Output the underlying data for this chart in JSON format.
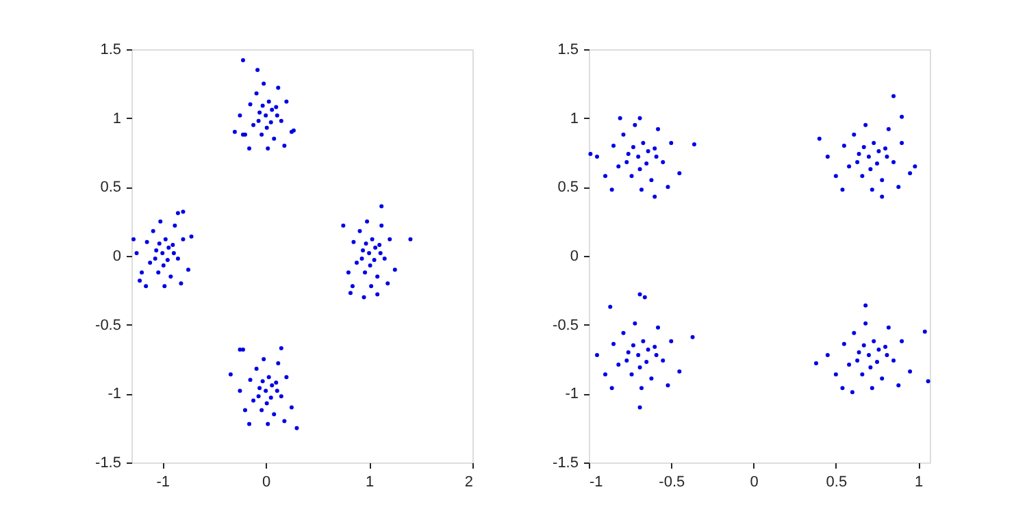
{
  "chart_data": [
    {
      "type": "scatter",
      "marker": "circle",
      "color": "#0000e6",
      "grid": false,
      "xlim": [
        -1.3,
        2
      ],
      "ylim": [
        -1.5,
        1.5
      ],
      "xticks": [
        -1,
        0,
        1,
        2
      ],
      "yticks": [
        -1.5,
        -1,
        -0.5,
        0,
        0.5,
        1,
        1.5
      ],
      "x": [
        0.0,
        0.05,
        -0.06,
        0.1,
        -0.12,
        0.03,
        -0.04,
        0.15,
        -0.15,
        0.08,
        -0.09,
        0.2,
        -0.2,
        0.02,
        0.12,
        -0.02,
        0.25,
        -0.25,
        0.18,
        -0.16,
        0.06,
        -0.07,
        0.01,
        0.11,
        -0.03,
        -0.22,
        -0.08,
        -0.22,
        0.27,
        -0.3,
        -1.0,
        -0.95,
        -1.06,
        -0.9,
        -1.12,
        -0.97,
        -1.04,
        -0.85,
        -1.15,
        -0.92,
        -1.09,
        -0.8,
        -1.2,
        -0.98,
        -0.88,
        -1.02,
        -0.75,
        -1.25,
        -0.82,
        -1.16,
        -0.94,
        -1.07,
        -0.99,
        -0.89,
        -1.03,
        -0.72,
        -1.28,
        -0.85,
        -0.8,
        -1.22,
        1.0,
        1.05,
        0.94,
        1.1,
        0.88,
        1.03,
        0.96,
        1.15,
        0.85,
        1.08,
        0.91,
        1.2,
        0.8,
        1.02,
        1.12,
        0.98,
        1.25,
        0.75,
        1.18,
        0.84,
        1.06,
        0.93,
        1.01,
        1.11,
        0.97,
        1.4,
        1.12,
        0.95,
        1.08,
        0.82,
        0.0,
        0.05,
        -0.06,
        0.1,
        -0.12,
        0.03,
        -0.04,
        0.15,
        -0.15,
        0.08,
        -0.09,
        0.2,
        -0.2,
        0.02,
        0.12,
        -0.02,
        0.25,
        -0.25,
        0.18,
        -0.16,
        0.06,
        -0.07,
        0.01,
        0.11,
        -0.03,
        -0.25,
        -0.22,
        0.15,
        0.3,
        -0.34
      ],
      "values": [
        1.02,
        0.97,
        1.04,
        1.08,
        0.95,
        1.12,
        0.88,
        0.98,
        1.1,
        0.85,
        1.18,
        1.12,
        0.88,
        0.78,
        1.22,
        1.25,
        0.9,
        1.02,
        0.8,
        0.78,
        1.06,
        0.98,
        0.93,
        1.02,
        1.09,
        1.42,
        1.35,
        0.88,
        0.91,
        0.9,
        0.02,
        -0.03,
        0.04,
        0.08,
        -0.05,
        0.12,
        -0.12,
        -0.02,
        0.1,
        -0.15,
        0.18,
        0.12,
        -0.12,
        -0.22,
        0.22,
        0.25,
        -0.1,
        0.02,
        -0.2,
        -0.22,
        0.06,
        -0.02,
        -0.07,
        0.02,
        0.09,
        0.14,
        0.12,
        0.31,
        0.32,
        -0.18,
        0.02,
        -0.03,
        0.04,
        0.08,
        -0.05,
        0.12,
        -0.12,
        -0.02,
        0.1,
        -0.15,
        0.18,
        0.12,
        -0.12,
        -0.22,
        0.22,
        0.25,
        -0.1,
        0.22,
        -0.2,
        -0.22,
        0.06,
        -0.02,
        -0.07,
        0.02,
        0.09,
        0.12,
        0.36,
        -0.3,
        -0.28,
        -0.27,
        -0.98,
        -1.03,
        -0.96,
        -0.92,
        -1.05,
        -0.88,
        -1.12,
        -1.02,
        -0.9,
        -1.15,
        -0.82,
        -0.88,
        -1.12,
        -1.22,
        -0.78,
        -0.75,
        -1.1,
        -0.98,
        -1.2,
        -1.22,
        -0.94,
        -1.02,
        -1.07,
        -0.98,
        -0.91,
        -0.68,
        -0.68,
        -0.67,
        -1.25,
        -0.86
      ]
    },
    {
      "type": "scatter",
      "marker": "circle",
      "color": "#0000e6",
      "grid": false,
      "xlim": [
        -1,
        1.07
      ],
      "ylim": [
        -1.5,
        1.5
      ],
      "xticks": [
        -1,
        -0.5,
        0,
        0.5,
        1
      ],
      "yticks": [
        -1.5,
        -1,
        -0.5,
        0,
        0.5,
        1,
        1.5
      ],
      "x": [
        -0.7,
        -0.65,
        -0.76,
        -0.6,
        -0.82,
        -0.67,
        -0.74,
        -0.55,
        -0.85,
        -0.62,
        -0.79,
        -0.5,
        -0.9,
        -0.68,
        -0.58,
        -0.72,
        -0.45,
        -0.95,
        -0.52,
        -0.86,
        -0.64,
        -0.77,
        -0.69,
        -0.59,
        -0.73,
        -0.36,
        -0.99,
        -0.81,
        -0.69,
        -0.6,
        0.7,
        0.75,
        0.64,
        0.8,
        0.58,
        0.73,
        0.66,
        0.85,
        0.55,
        0.78,
        0.61,
        0.9,
        0.5,
        0.72,
        0.82,
        0.68,
        0.95,
        0.45,
        0.88,
        0.54,
        0.76,
        0.63,
        0.71,
        0.81,
        0.67,
        0.4,
        0.85,
        0.98,
        0.9,
        0.78,
        -0.7,
        -0.65,
        -0.76,
        -0.6,
        -0.82,
        -0.67,
        -0.74,
        -0.55,
        -0.85,
        -0.62,
        -0.79,
        -0.5,
        -0.9,
        -0.68,
        -0.58,
        -0.72,
        -0.45,
        -0.95,
        -0.52,
        -0.86,
        -0.64,
        -0.77,
        -0.69,
        -0.59,
        -0.73,
        -0.37,
        -0.69,
        -0.66,
        -0.87,
        -0.69,
        0.7,
        0.75,
        0.64,
        0.8,
        0.58,
        0.73,
        0.66,
        0.85,
        0.55,
        0.78,
        0.61,
        0.9,
        0.5,
        0.72,
        0.82,
        0.68,
        0.95,
        0.45,
        0.88,
        0.54,
        0.76,
        0.63,
        0.71,
        0.81,
        0.67,
        0.38,
        1.06,
        1.04,
        0.68,
        0.6
      ],
      "values": [
        0.72,
        0.67,
        0.74,
        0.78,
        0.65,
        0.82,
        0.58,
        0.68,
        0.8,
        0.55,
        0.88,
        0.82,
        0.58,
        0.48,
        0.92,
        0.95,
        0.6,
        0.72,
        0.5,
        0.48,
        0.76,
        0.68,
        0.63,
        0.72,
        0.79,
        0.81,
        0.74,
        1.0,
        1.0,
        0.43,
        0.72,
        0.67,
        0.74,
        0.78,
        0.65,
        0.82,
        0.58,
        0.68,
        0.8,
        0.55,
        0.88,
        0.82,
        0.58,
        0.48,
        0.92,
        0.95,
        0.6,
        0.72,
        0.5,
        0.48,
        0.76,
        0.68,
        0.63,
        0.72,
        0.79,
        0.85,
        1.16,
        0.65,
        1.01,
        0.43,
        -0.72,
        -0.77,
        -0.7,
        -0.66,
        -0.79,
        -0.62,
        -0.86,
        -0.76,
        -0.64,
        -0.89,
        -0.56,
        -0.62,
        -0.86,
        -0.96,
        -0.52,
        -0.49,
        -0.84,
        -0.72,
        -0.94,
        -0.96,
        -0.68,
        -0.76,
        -0.81,
        -0.72,
        -0.65,
        -0.59,
        -1.1,
        -0.3,
        -0.37,
        -0.28,
        -0.72,
        -0.77,
        -0.7,
        -0.66,
        -0.79,
        -0.62,
        -0.86,
        -0.76,
        -0.64,
        -0.89,
        -0.56,
        -0.62,
        -0.86,
        -0.96,
        -0.52,
        -0.49,
        -0.84,
        -0.72,
        -0.94,
        -0.96,
        -0.68,
        -0.76,
        -0.81,
        -0.72,
        -0.65,
        -0.78,
        -0.91,
        -0.55,
        -0.36,
        -0.99
      ]
    }
  ]
}
